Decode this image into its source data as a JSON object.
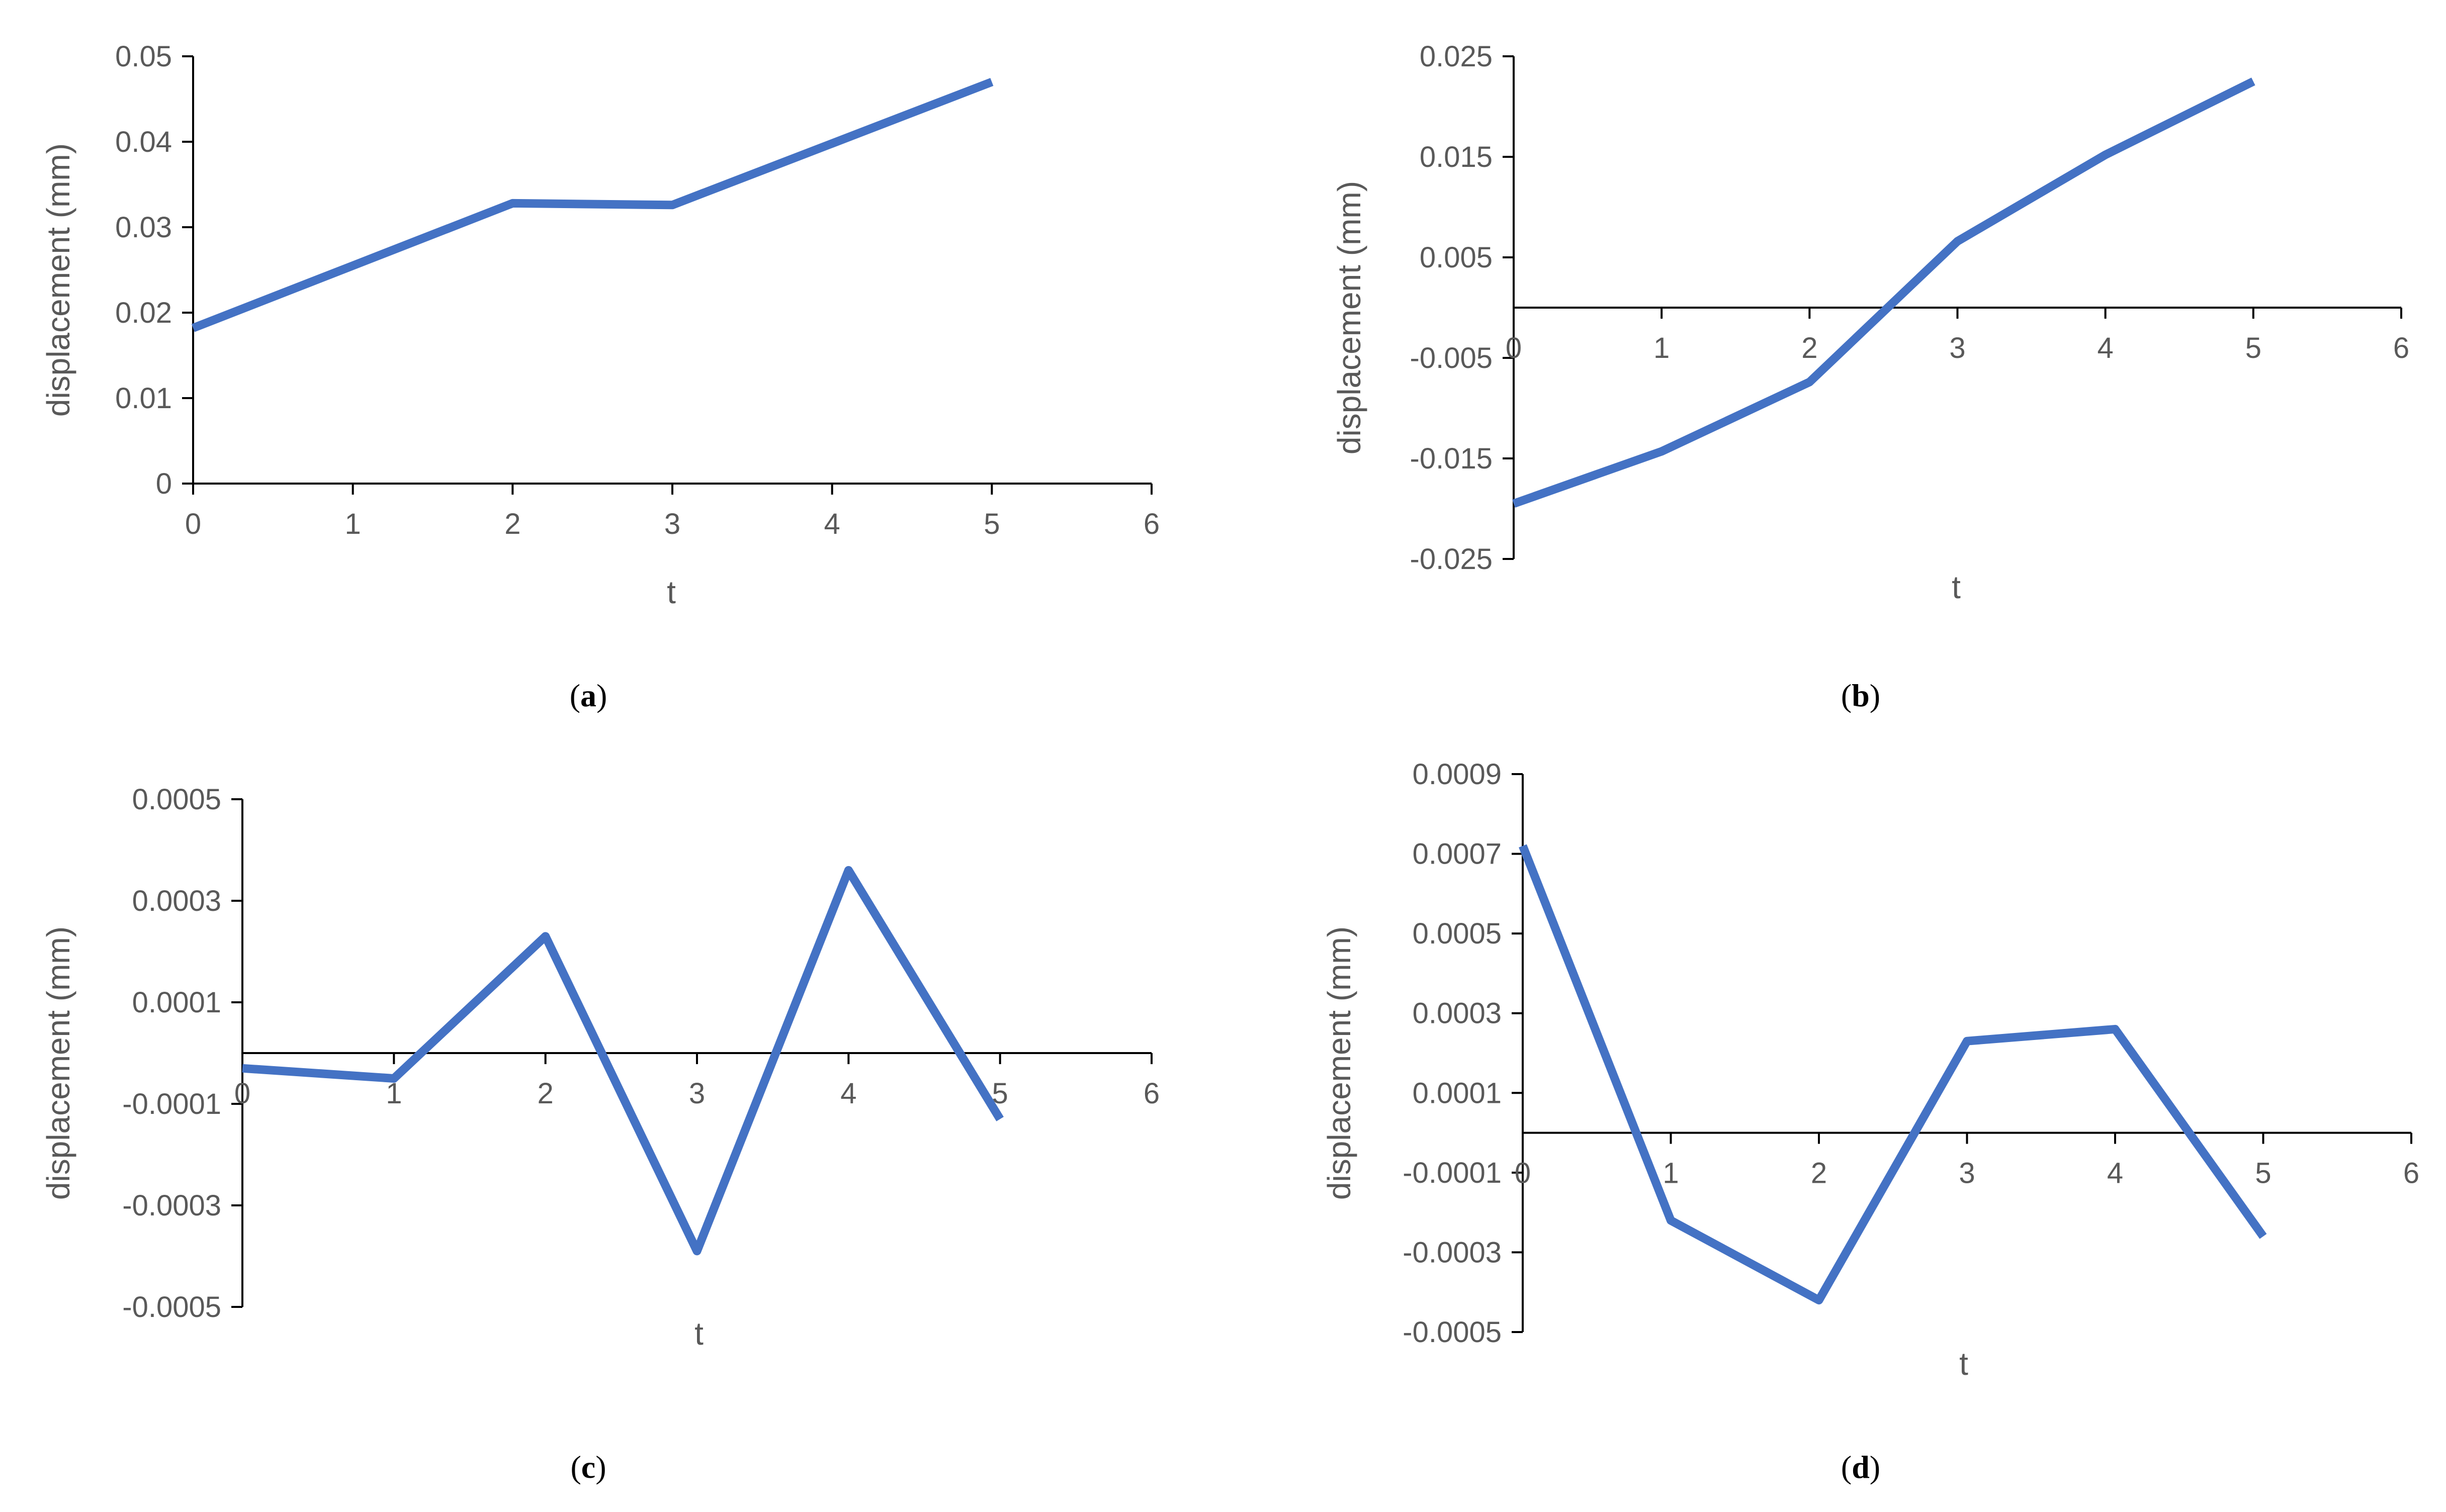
{
  "chart_data": [
    {
      "type": "line",
      "caption_letter": "a",
      "x": [
        0,
        1,
        2,
        3,
        4,
        5
      ],
      "series": [
        {
          "values": [
            0.0182,
            0.0255,
            0.0328,
            0.0326,
            0.0398,
            0.047
          ],
          "color": "#4472C4"
        }
      ],
      "xlabel": "t",
      "ylabel": "displacement (mm)",
      "xlim": [
        0,
        6
      ],
      "ylim": [
        0,
        0.05
      ],
      "x_ticks": [
        "0",
        "1",
        "2",
        "3",
        "4",
        "5",
        "6"
      ],
      "y_ticks": [
        "0",
        "0.01",
        "0.02",
        "0.03",
        "0.04",
        "0.05"
      ],
      "x_axis_at": "bottom",
      "grid": false
    },
    {
      "type": "line",
      "caption_letter": "b",
      "x": [
        0,
        1,
        2,
        3,
        4,
        5
      ],
      "series": [
        {
          "values": [
            -0.0195,
            -0.0143,
            -0.0074,
            0.0066,
            0.0152,
            0.0225
          ],
          "color": "#4472C4"
        }
      ],
      "xlabel": "t",
      "ylabel": "displacement (mm)",
      "xlim": [
        0,
        6
      ],
      "ylim": [
        -0.025,
        0.025
      ],
      "x_ticks": [
        "0",
        "1",
        "2",
        "3",
        "4",
        "5",
        "6"
      ],
      "y_ticks": [
        "-0.025",
        "-0.015",
        "-0.005",
        "0.005",
        "0.015",
        "0.025"
      ],
      "x_axis_at": "zero",
      "grid": false
    },
    {
      "type": "line",
      "caption_letter": "c",
      "x": [
        0,
        1,
        2,
        3,
        4,
        5
      ],
      "series": [
        {
          "values": [
            -3e-05,
            -5e-05,
            0.00023,
            -0.00039,
            0.00036,
            -0.00013
          ],
          "color": "#4472C4"
        }
      ],
      "xlabel": "t",
      "ylabel": "displacement (mm)",
      "xlim": [
        0,
        6
      ],
      "ylim": [
        -0.0005,
        0.0005
      ],
      "x_ticks": [
        "0",
        "1",
        "2",
        "3",
        "4",
        "5",
        "6"
      ],
      "y_ticks": [
        "-0.0005",
        "-0.0003",
        "-0.0001",
        "0.0001",
        "0.0003",
        "0.0005"
      ],
      "x_axis_at": "zero",
      "grid": false
    },
    {
      "type": "line",
      "caption_letter": "d",
      "x": [
        0,
        1,
        2,
        3,
        4,
        5
      ],
      "series": [
        {
          "values": [
            0.00072,
            -0.00022,
            -0.00042,
            0.00023,
            0.00026,
            -0.00026
          ],
          "color": "#4472C4"
        }
      ],
      "xlabel": "t",
      "ylabel": "displacement (mm)",
      "xlim": [
        0,
        6
      ],
      "ylim": [
        -0.0005,
        0.0009
      ],
      "x_ticks": [
        "0",
        "1",
        "2",
        "3",
        "4",
        "5",
        "6"
      ],
      "y_ticks": [
        "-0.0005",
        "-0.0003",
        "-0.0001",
        "0.0001",
        "0.0003",
        "0.0005",
        "0.0007",
        "0.0009"
      ],
      "x_axis_at": "zero",
      "grid": false
    }
  ]
}
